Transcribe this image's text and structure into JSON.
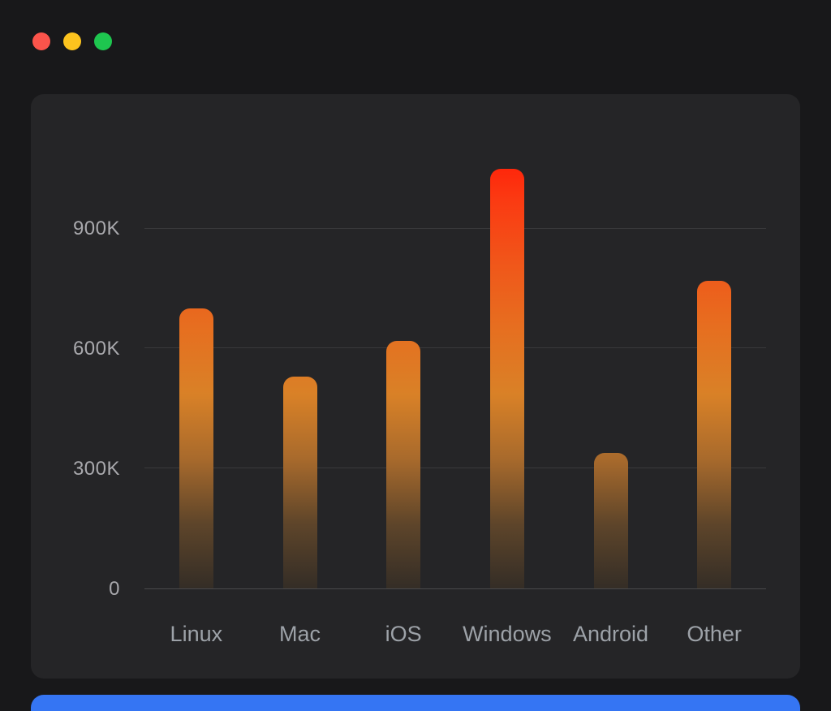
{
  "window": {
    "controls": [
      {
        "name": "close-button",
        "color": "#fb544b"
      },
      {
        "name": "minimize-button",
        "color": "#fcc31e"
      },
      {
        "name": "maximize-button",
        "color": "#1ec64f"
      }
    ]
  },
  "colors": {
    "background": "#18181a",
    "card": "#252527",
    "grid": "#39393b",
    "axis_line": "#4a4a4c",
    "tick_text": "#a9a9ad",
    "label_text": "#9da2a8",
    "next_card": "#3575f3"
  },
  "chart_data": {
    "type": "bar",
    "title": "",
    "xlabel": "",
    "ylabel": "",
    "categories": [
      "Linux",
      "Mac",
      "iOS",
      "Windows",
      "Android",
      "Other"
    ],
    "values": [
      700000,
      530000,
      620000,
      1050000,
      340000,
      770000
    ],
    "ylim": [
      0,
      1080000
    ],
    "yticks": [
      {
        "value": 0,
        "label": "0"
      },
      {
        "value": 300000,
        "label": "300K"
      },
      {
        "value": 600000,
        "label": "600K"
      },
      {
        "value": 900000,
        "label": "900K"
      }
    ],
    "grid": true,
    "legend": false,
    "bar_gradient": [
      {
        "pos": "0%",
        "color": "#ff2008"
      },
      {
        "pos": "10%",
        "color": "#fb3a12"
      },
      {
        "pos": "25%",
        "color": "#f0571a"
      },
      {
        "pos": "40%",
        "color": "#e66f20"
      },
      {
        "pos": "55%",
        "color": "#d98127"
      },
      {
        "pos": "70%",
        "color": "#a86a2c"
      },
      {
        "pos": "85%",
        "color": "#5e452a"
      },
      {
        "pos": "100%",
        "color": "#342d26"
      }
    ]
  }
}
